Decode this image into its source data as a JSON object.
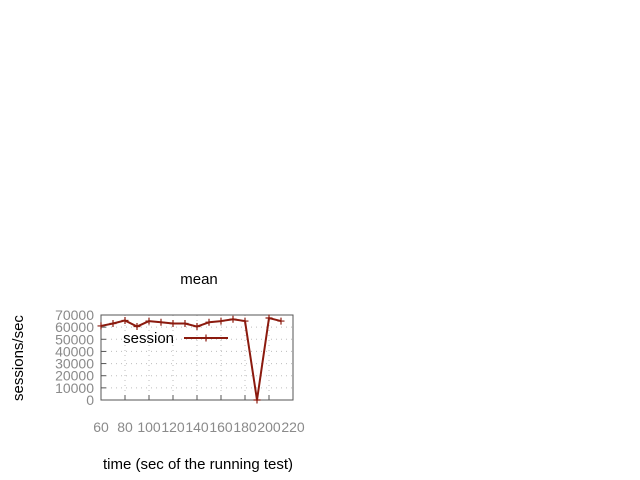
{
  "chart_data": {
    "type": "line",
    "title": "mean",
    "xlabel": "time (sec of the running test)",
    "ylabel": "sessions/sec",
    "xlim": [
      60,
      220
    ],
    "ylim": [
      0,
      70000
    ],
    "xticks": [
      60,
      80,
      100,
      120,
      140,
      160,
      180,
      200,
      220
    ],
    "yticks": [
      0,
      10000,
      20000,
      30000,
      40000,
      50000,
      60000,
      70000
    ],
    "grid": true,
    "legend": {
      "position": "top-left"
    },
    "series": [
      {
        "name": "session",
        "color": "#8b1a0e",
        "marker": "plus",
        "x": [
          60,
          70,
          80,
          90,
          100,
          110,
          120,
          130,
          140,
          150,
          160,
          170,
          180,
          190,
          200,
          210
        ],
        "y": [
          61000,
          63000,
          65500,
          60500,
          65000,
          64000,
          63000,
          63000,
          60500,
          64000,
          65000,
          66500,
          65000,
          0,
          67500,
          65000
        ]
      }
    ]
  }
}
